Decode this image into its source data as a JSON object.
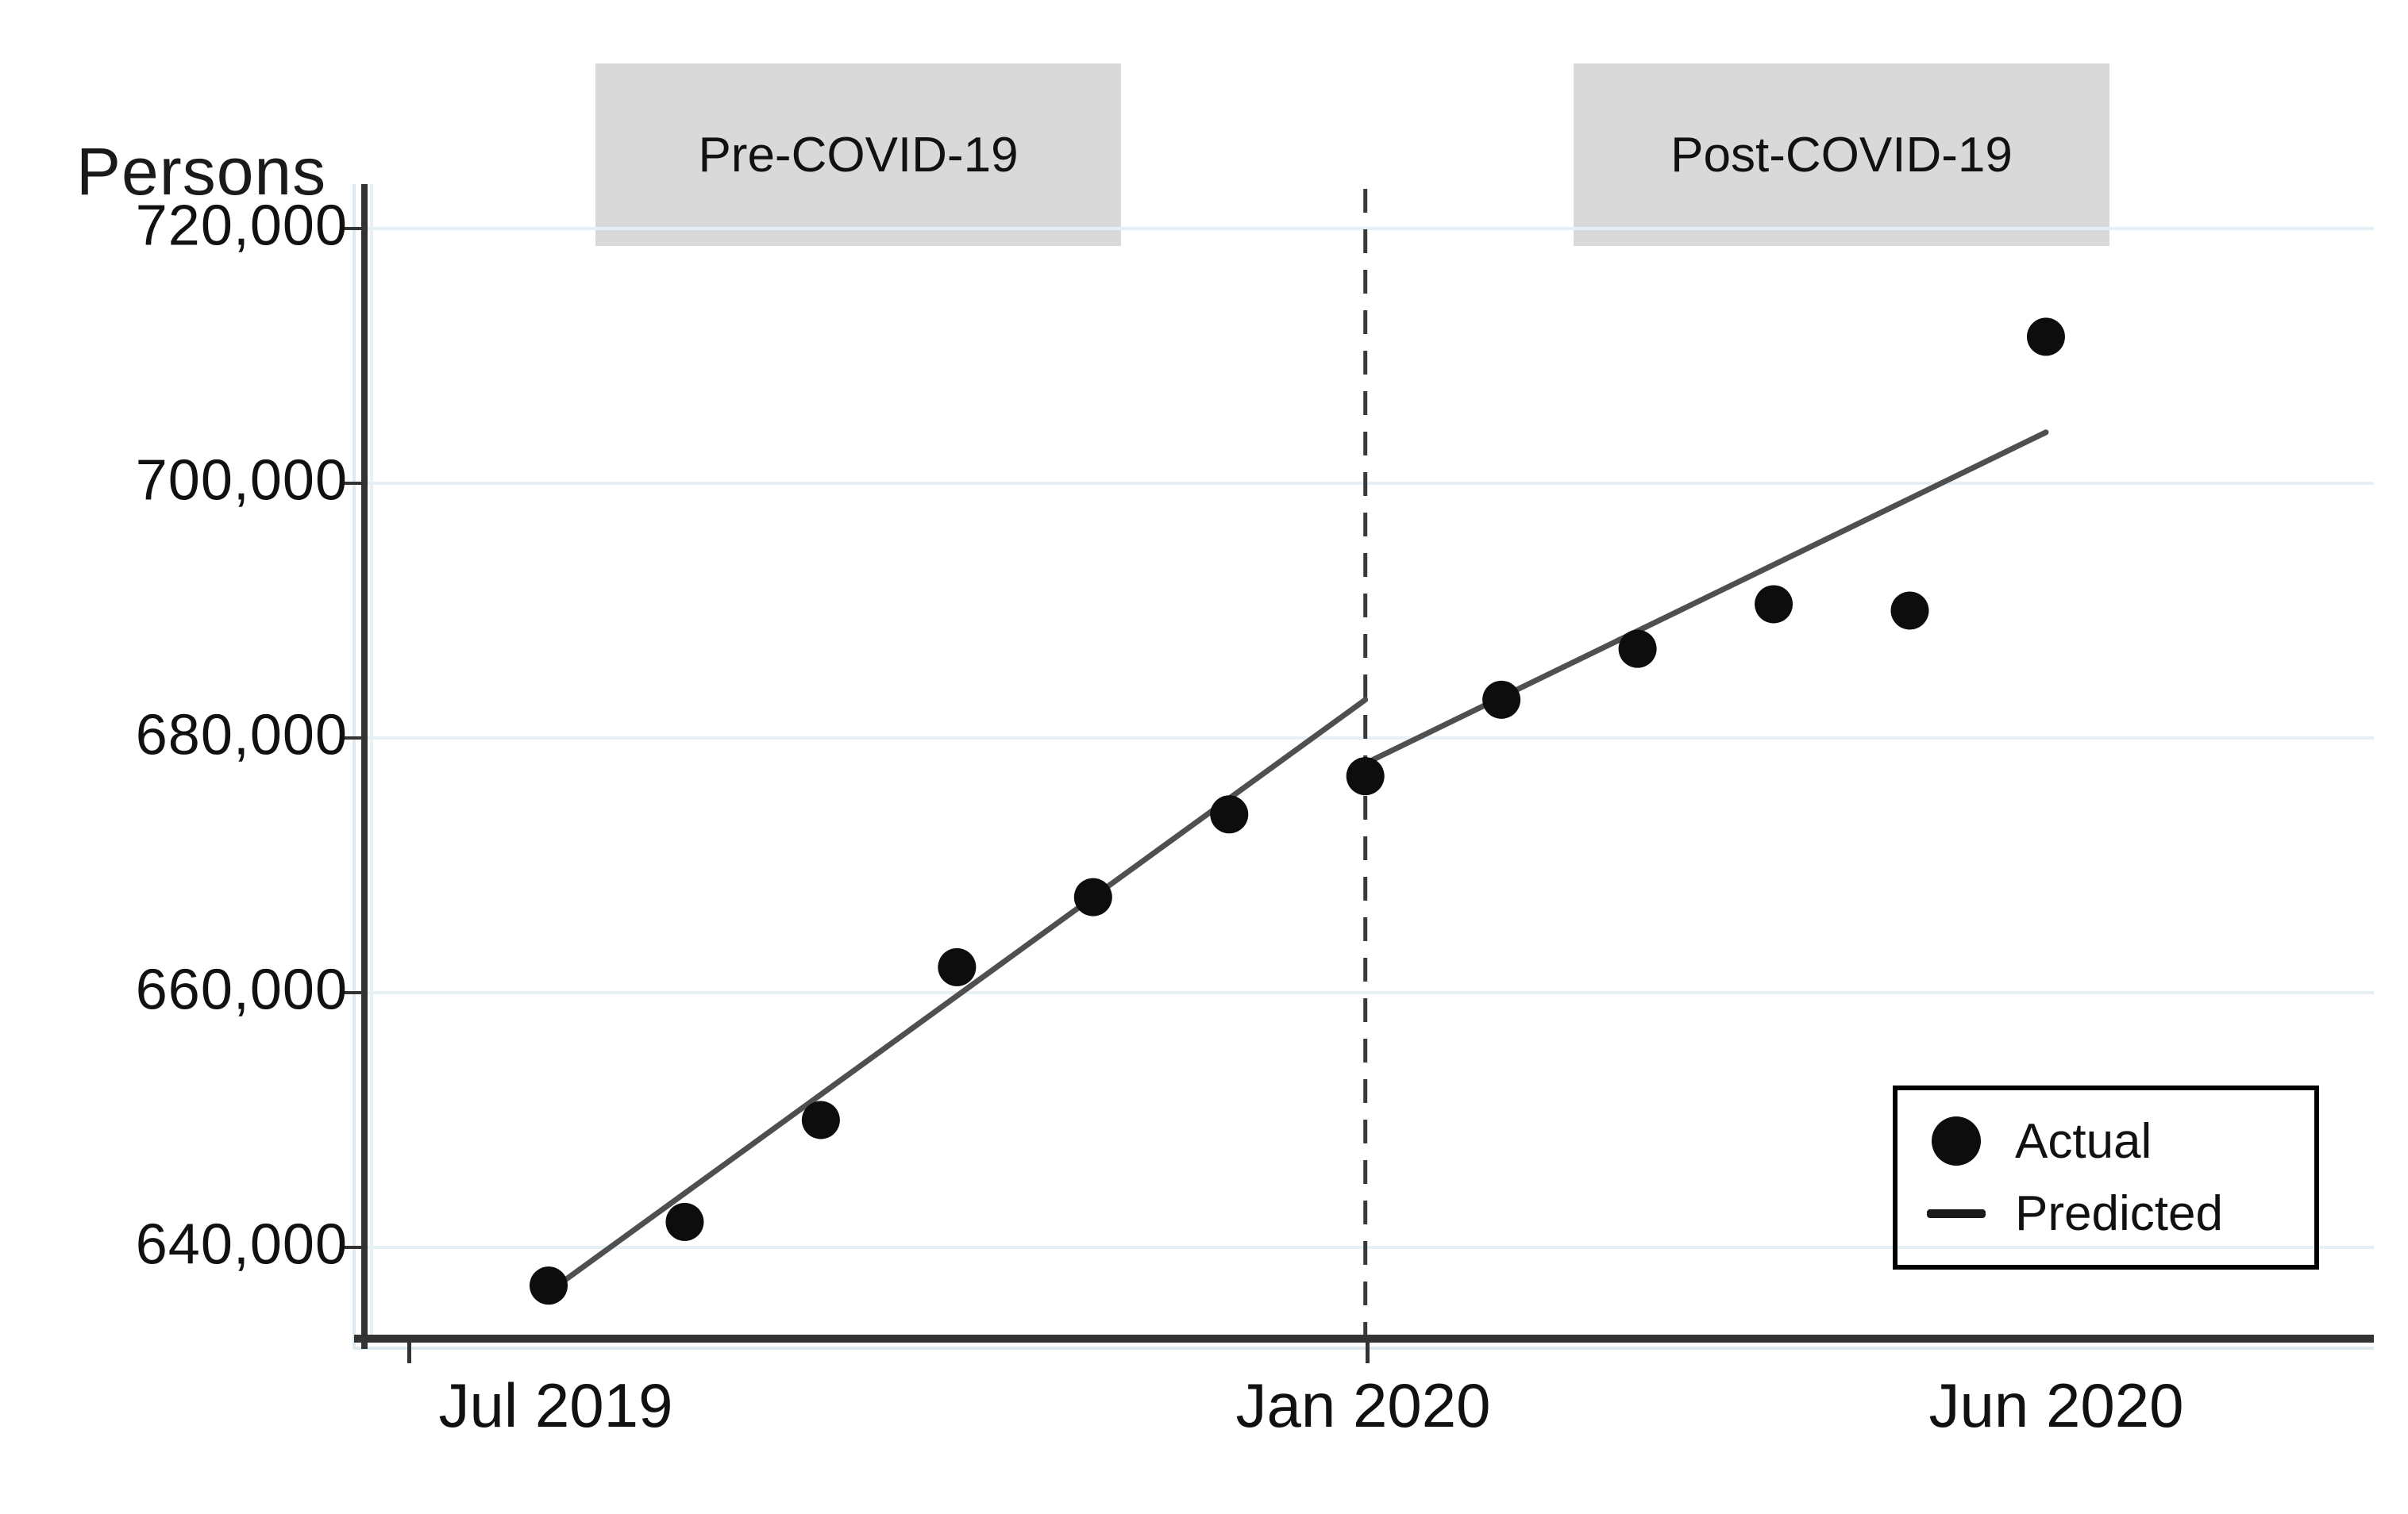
{
  "window": {
    "background": "#ffffff"
  },
  "chart": {
    "y_axis_title": "Persons",
    "banners": {
      "pre": "Pre-COVID-19",
      "post": "Post-COVID-19"
    },
    "legend": {
      "actual": "Actual",
      "predicted": "Predicted"
    },
    "colors": {
      "dot": "#0d0d0d",
      "predicted_line": "#4f4f4f",
      "dashed_line": "#3a3a3a",
      "axis": "#333333",
      "gridline": "#e7f0f4",
      "axis_halo": "#dfeaf0",
      "banner_bg": "#d9d9d9",
      "text": "#111111",
      "legend_border": "#000000"
    }
  },
  "chart_data": {
    "type": "scatter",
    "title": "Persons",
    "ylabel": "Persons",
    "xlabel": "",
    "x": [
      "Jul 2019",
      "Aug 2019",
      "Sep 2019",
      "Oct 2019",
      "Nov 2019",
      "Dec 2019",
      "Jan 2020",
      "Feb 2020",
      "Mar 2020",
      "Apr 2020",
      "May 2020",
      "Jun 2020"
    ],
    "series": [
      {
        "name": "Actual",
        "type": "scatter",
        "values": [
          637000,
          642000,
          650000,
          662000,
          667500,
          674000,
          677000,
          683000,
          687000,
          690500,
          690000,
          711500
        ]
      },
      {
        "name": "Predicted (pre-COVID segment)",
        "type": "line",
        "x_index": [
          0,
          6
        ],
        "values": [
          636500,
          683000
        ]
      },
      {
        "name": "Predicted (post-COVID segment)",
        "type": "line",
        "x_index": [
          6,
          11
        ],
        "values": [
          678000,
          704000
        ]
      }
    ],
    "y_ticks": [
      {
        "value": 720000,
        "label": "720,000"
      },
      {
        "value": 700000,
        "label": "700,000"
      },
      {
        "value": 680000,
        "label": "680,000"
      },
      {
        "value": 660000,
        "label": "660,000"
      },
      {
        "value": 640000,
        "label": "640,000"
      }
    ],
    "x_tick_labels": [
      "Jul 2019",
      "Jan 2020",
      "Jun 2020"
    ],
    "ylim": [
      632000,
      722500
    ],
    "grid": "horizontal",
    "legend_position": "bottom-right",
    "annotations": {
      "vline_at": "Jan 2020",
      "vline_style": "dashed",
      "pre_period_label": "Pre-COVID-19",
      "post_period_label": "Post-COVID-19"
    }
  }
}
